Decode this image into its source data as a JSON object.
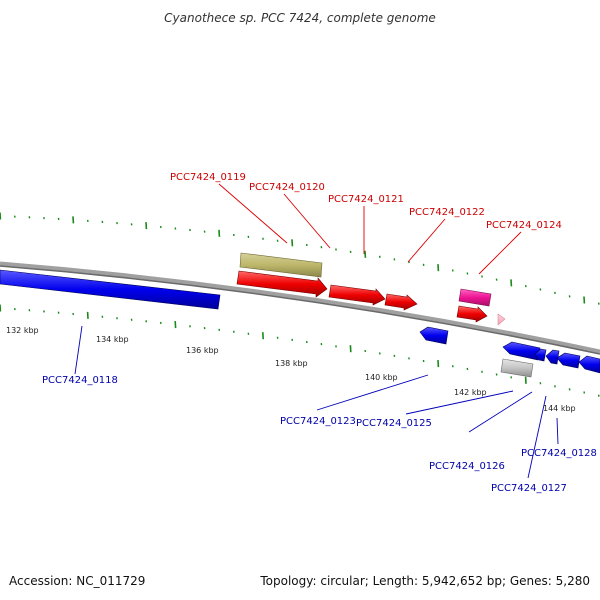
{
  "title": "Cyanothece sp. PCC 7424, complete genome",
  "footer": {
    "accession": "Accession: NC_011729",
    "summary": "Topology: circular; Length: 5,942,652 bp; Genes: 5,280"
  },
  "colors": {
    "forward_label": "#cc0000",
    "reverse_label": "#0000aa",
    "backbone": "#808080",
    "tick": "#1a8a1a"
  },
  "ruler_labels": [
    "132 kbp",
    "134 kbp",
    "136 kbp",
    "138 kbp",
    "140 kbp",
    "142 kbp",
    "144 kbp"
  ],
  "gene_labels": {
    "g0118": "PCC7424_0118",
    "g0119": "PCC7424_0119",
    "g0120": "PCC7424_0120",
    "g0121": "PCC7424_0121",
    "g0122": "PCC7424_0122",
    "g0123": "PCC7424_0123",
    "g0124": "PCC7424_0124",
    "g0125": "PCC7424_0125",
    "g0126": "PCC7424_0126",
    "g0127": "PCC7424_0127",
    "g0128": "PCC7424_0128"
  }
}
